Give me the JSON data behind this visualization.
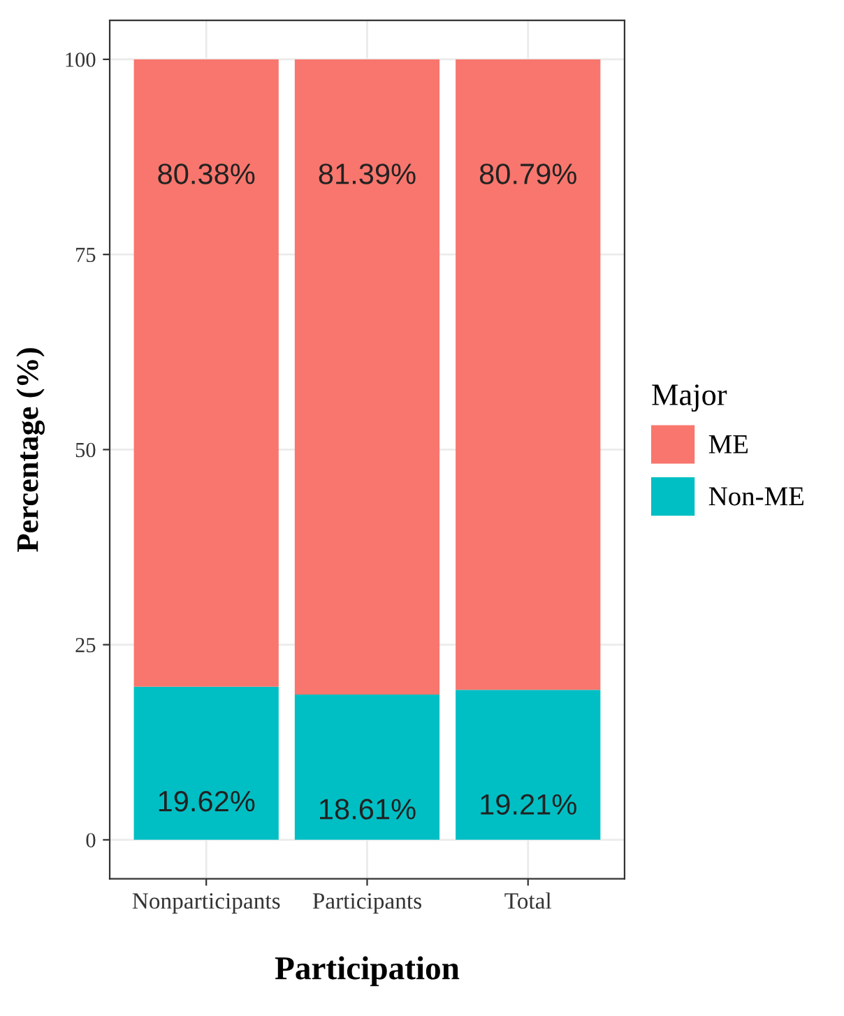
{
  "chart_data": {
    "type": "bar",
    "stacked": true,
    "xlabel": "Participation",
    "ylabel": "Percentage (%)",
    "legend_title": "Major",
    "legend": "right",
    "categories": [
      "Nonparticipants",
      "Participants",
      "Total"
    ],
    "series": [
      {
        "name": "Non-ME",
        "color": "#00bfc4",
        "values": [
          19.62,
          18.61,
          19.21
        ],
        "value_labels": [
          "19.62%",
          "18.61%",
          "19.21%"
        ]
      },
      {
        "name": "ME",
        "color": "#f8766d",
        "values": [
          80.38,
          81.39,
          80.79
        ],
        "value_labels": [
          "80.38%",
          "81.39%",
          "80.79%"
        ]
      }
    ],
    "ylim": [
      -5,
      105
    ],
    "yticks": [
      0,
      25,
      50,
      75,
      100
    ],
    "grid": true
  }
}
